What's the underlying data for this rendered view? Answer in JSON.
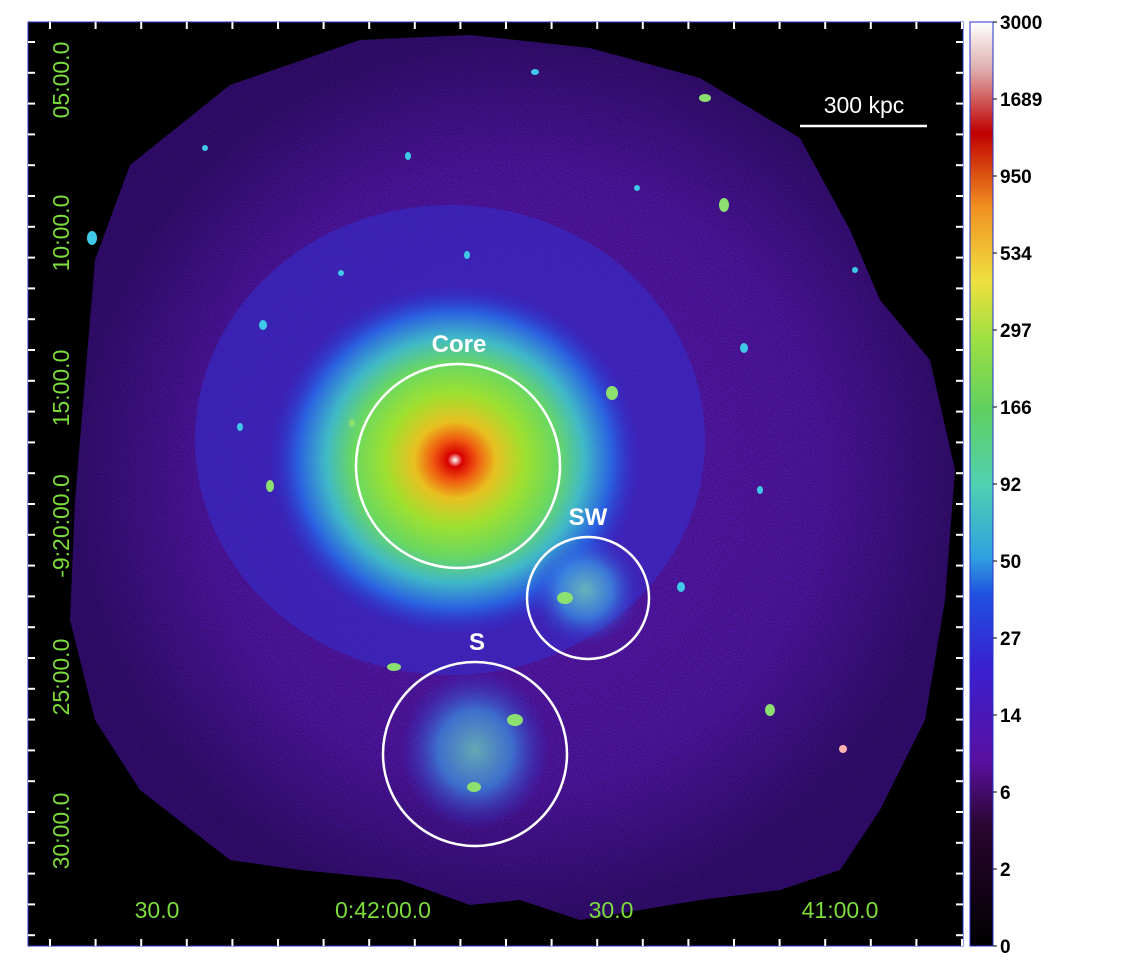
{
  "image": {
    "region_labels": [
      "Core",
      "SW",
      "S"
    ],
    "scale_bar_label": "300 kpc",
    "dec_ticks": [
      "05:00.0",
      "10:00.0",
      "15:00.0",
      "-9:20:00.0",
      "25:00.0",
      "30:00.0"
    ],
    "ra_ticks": [
      "30.0",
      "0:42:00.0",
      "30.0",
      "41:00.0"
    ],
    "colorbar_ticks": [
      "3000",
      "1689",
      "950",
      "534",
      "297",
      "166",
      "92",
      "50",
      "27",
      "14",
      "6",
      "2",
      "0"
    ],
    "colors": {
      "label_white": "#ffffff",
      "coord_green": "#7cdc3c",
      "background": "#000000",
      "frame_blue": "#2233cc"
    }
  }
}
